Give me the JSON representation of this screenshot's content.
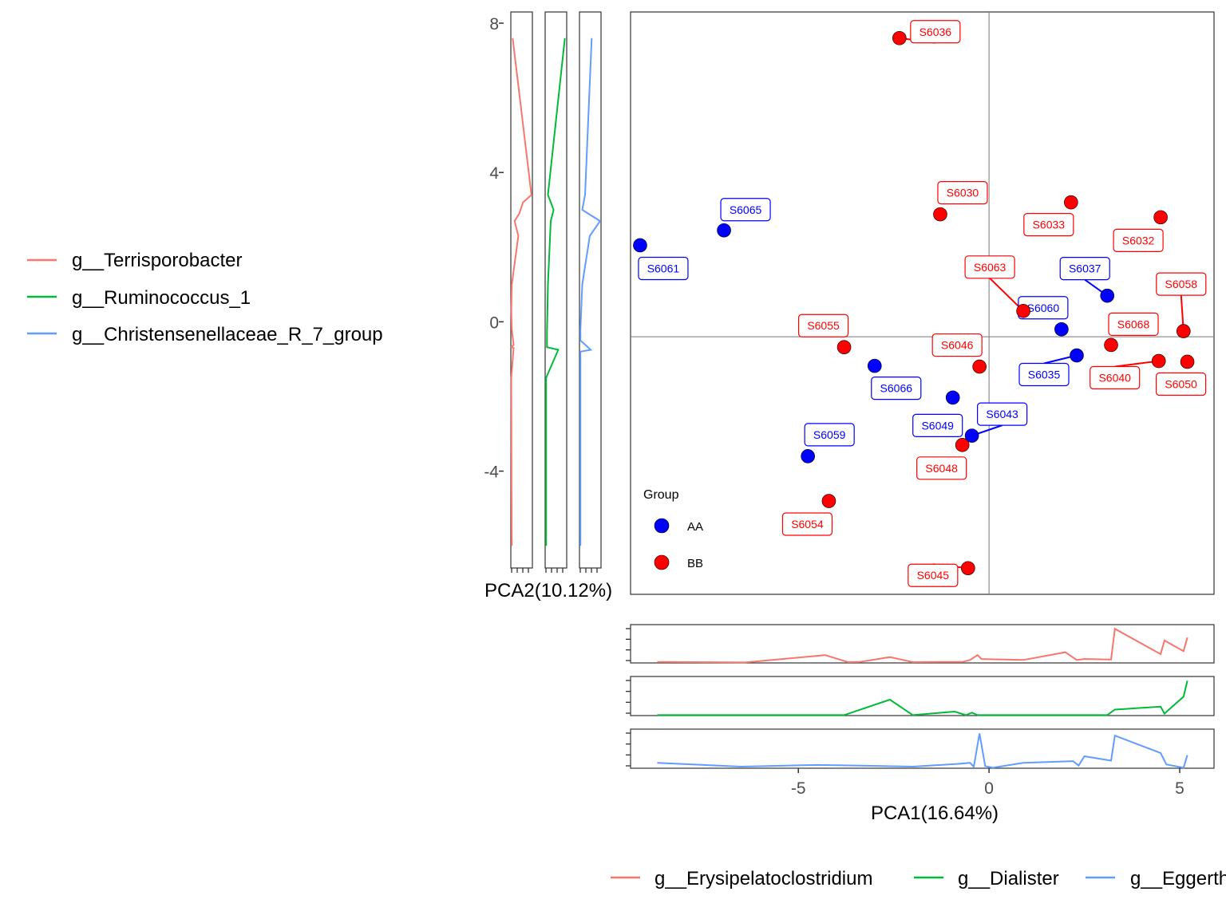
{
  "chart_data": {
    "type": "scatter",
    "xlabel": "PCA1(16.64%)",
    "ylabel": "PCA2(10.12%)",
    "xlim": [
      -9.4,
      5.9
    ],
    "ylim": [
      -7.3,
      8.3
    ],
    "x_ticks": [
      -5,
      0,
      5
    ],
    "y_ticks": [
      -4,
      0,
      4,
      8
    ],
    "x_tick_labels": [
      "-5",
      "0",
      "5"
    ],
    "y_tick_labels": [
      "-4",
      "0",
      "4",
      "8"
    ],
    "group_legend": {
      "title": "Group",
      "entries": [
        {
          "name": "AA",
          "color": "#0000ff"
        },
        {
          "name": "BB",
          "color": "#ff0000"
        }
      ]
    },
    "points": [
      {
        "id": "S6036",
        "group": "BB",
        "x": -2.35,
        "y": 7.6
      },
      {
        "id": "S6030",
        "group": "BB",
        "x": -1.28,
        "y": 2.88
      },
      {
        "id": "S6033",
        "group": "BB",
        "x": 2.15,
        "y": 3.2
      },
      {
        "id": "S6032",
        "group": "BB",
        "x": 4.5,
        "y": 2.8
      },
      {
        "id": "S6063",
        "group": "BB",
        "x": 0.9,
        "y": 0.29
      },
      {
        "id": "S6058",
        "group": "BB",
        "x": 5.1,
        "y": -0.25
      },
      {
        "id": "S6068",
        "group": "BB",
        "x": 3.2,
        "y": -0.62
      },
      {
        "id": "S6055",
        "group": "BB",
        "x": -3.8,
        "y": -0.68
      },
      {
        "id": "S6046",
        "group": "BB",
        "x": -0.25,
        "y": -1.2
      },
      {
        "id": "S6040",
        "group": "BB",
        "x": 4.45,
        "y": -1.05
      },
      {
        "id": "S6050",
        "group": "BB",
        "x": 5.2,
        "y": -1.07
      },
      {
        "id": "S6048",
        "group": "BB",
        "x": -0.7,
        "y": -3.3
      },
      {
        "id": "S6054",
        "group": "BB",
        "x": -4.2,
        "y": -4.8
      },
      {
        "id": "S6045",
        "group": "BB",
        "x": -0.55,
        "y": -6.6
      },
      {
        "id": "S6065",
        "group": "AA",
        "x": -6.95,
        "y": 2.45
      },
      {
        "id": "S6061",
        "group": "AA",
        "x": -9.15,
        "y": 2.05
      },
      {
        "id": "S6037",
        "group": "AA",
        "x": 3.1,
        "y": 0.7
      },
      {
        "id": "S6060",
        "group": "AA",
        "x": 1.9,
        "y": -0.2
      },
      {
        "id": "S6035",
        "group": "AA",
        "x": 2.3,
        "y": -0.9
      },
      {
        "id": "S6066",
        "group": "AA",
        "x": -3.0,
        "y": -1.18
      },
      {
        "id": "S6049",
        "group": "AA",
        "x": -0.95,
        "y": -2.03
      },
      {
        "id": "S6043",
        "group": "AA",
        "x": -0.45,
        "y": -3.05
      },
      {
        "id": "S6059",
        "group": "AA",
        "x": -4.75,
        "y": -3.6
      }
    ],
    "side_series_left": [
      {
        "name": "g__Terrisporobacter",
        "color": "#f8766d",
        "values": [
          [
            0.1,
            -6.0
          ],
          [
            0.08,
            -4.5
          ],
          [
            0.05,
            -1.5
          ],
          [
            0.3,
            -0.7
          ],
          [
            0.05,
            -0.68
          ],
          [
            0.3,
            -0.62
          ],
          [
            0.2,
            -0.4
          ],
          [
            0.1,
            -0.2
          ],
          [
            0.05,
            0.3
          ],
          [
            0.1,
            1.0
          ],
          [
            0.8,
            2.3
          ],
          [
            0.4,
            2.7
          ],
          [
            0.9,
            2.9
          ],
          [
            1.3,
            3.2
          ],
          [
            2.2,
            3.4
          ],
          [
            0.2,
            7.6
          ]
        ]
      },
      {
        "name": "g__Ruminococcus_1",
        "color": "#00ba38",
        "values": [
          [
            0.1,
            -6.0
          ],
          [
            0.1,
            -1.5
          ],
          [
            1.4,
            -0.75
          ],
          [
            0.2,
            -0.68
          ],
          [
            0.2,
            -0.3
          ],
          [
            0.3,
            1.0
          ],
          [
            0.6,
            2.7
          ],
          [
            0.9,
            3.0
          ],
          [
            0.3,
            3.4
          ],
          [
            2.1,
            7.6
          ]
        ]
      },
      {
        "name": "g__Christensenellaceae_R_7_group",
        "color": "#619cff",
        "values": [
          [
            0.1,
            -6.0
          ],
          [
            0.1,
            -1.5
          ],
          [
            0.1,
            -0.8
          ],
          [
            1.2,
            -0.75
          ],
          [
            0.1,
            -0.5
          ],
          [
            0.1,
            -0.2
          ],
          [
            0.3,
            1.0
          ],
          [
            1.1,
            2.3
          ],
          [
            2.2,
            2.7
          ],
          [
            0.3,
            3.0
          ],
          [
            0.6,
            3.4
          ],
          [
            1.3,
            7.6
          ]
        ]
      }
    ],
    "side_series_bottom": [
      {
        "name": "g__Erysipelatoclostridium",
        "color": "#f8766d",
        "values": [
          [
            -8.7,
            0.1
          ],
          [
            -6.4,
            0.05
          ],
          [
            -4.3,
            0.8
          ],
          [
            -3.7,
            0.08
          ],
          [
            -3.4,
            0.1
          ],
          [
            -2.6,
            0.6
          ],
          [
            -2.0,
            0.08
          ],
          [
            -1.3,
            0.1
          ],
          [
            -0.7,
            0.1
          ],
          [
            -0.5,
            0.3
          ],
          [
            -0.3,
            0.8
          ],
          [
            -0.2,
            0.4
          ],
          [
            0.9,
            0.3
          ],
          [
            2.0,
            1.1
          ],
          [
            2.3,
            0.3
          ],
          [
            2.5,
            0.4
          ],
          [
            3.2,
            0.35
          ],
          [
            3.3,
            3.5
          ],
          [
            4.5,
            0.9
          ],
          [
            4.6,
            2.3
          ],
          [
            5.1,
            1.2
          ],
          [
            5.2,
            2.6
          ]
        ]
      },
      {
        "name": "g__Dialister",
        "color": "#00ba38",
        "values": [
          [
            -8.7,
            0.05
          ],
          [
            -3.8,
            0.05
          ],
          [
            -2.6,
            1.6
          ],
          [
            -2.0,
            0.05
          ],
          [
            -0.9,
            0.4
          ],
          [
            -0.6,
            0.05
          ],
          [
            -0.45,
            0.3
          ],
          [
            -0.3,
            0.05
          ],
          [
            2.2,
            0.05
          ],
          [
            3.1,
            0.05
          ],
          [
            3.3,
            0.6
          ],
          [
            4.5,
            0.9
          ],
          [
            4.6,
            0.2
          ],
          [
            5.1,
            1.9
          ],
          [
            5.2,
            3.5
          ]
        ]
      },
      {
        "name": "g__Eggerthella",
        "color": "#619cff",
        "values": [
          [
            -8.7,
            0.5
          ],
          [
            -6.5,
            0.15
          ],
          [
            -4.5,
            0.3
          ],
          [
            -3.5,
            0.25
          ],
          [
            -2.0,
            0.15
          ],
          [
            -0.8,
            0.4
          ],
          [
            -0.5,
            0.5
          ],
          [
            -0.4,
            0.15
          ],
          [
            -0.25,
            3.2
          ],
          [
            -0.1,
            0.2
          ],
          [
            0.1,
            0.05
          ],
          [
            0.9,
            0.5
          ],
          [
            2.2,
            0.65
          ],
          [
            2.35,
            0.25
          ],
          [
            2.5,
            1.1
          ],
          [
            3.2,
            0.7
          ],
          [
            3.3,
            3.0
          ],
          [
            4.5,
            1.4
          ],
          [
            4.65,
            0.35
          ],
          [
            5.1,
            0.05
          ],
          [
            5.2,
            1.2
          ]
        ]
      }
    ]
  },
  "legends": {
    "left": [
      "g__Terrisporobacter",
      "g__Ruminococcus_1",
      "g__Christensenellaceae_R_7_group"
    ],
    "bottom": [
      "g__Erysipelatoclostridium",
      "g__Dialister",
      "g__Eggerthella"
    ]
  },
  "colors": {
    "AA": "#0000ff",
    "BB": "#ff0000",
    "series1": "#f8766d",
    "series2": "#00ba38",
    "series3": "#619cff"
  }
}
